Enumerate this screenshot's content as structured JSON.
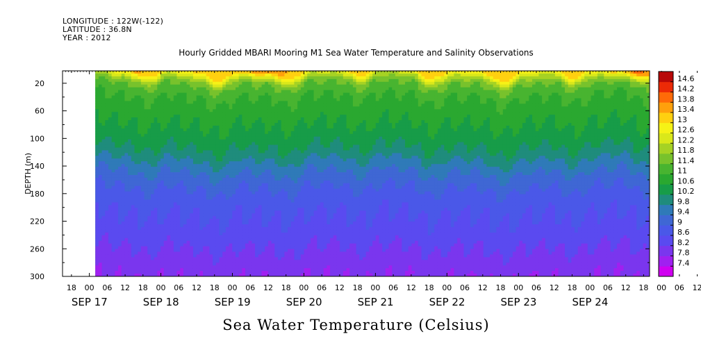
{
  "header": {
    "longitude": "LONGITUDE : 122W(-122)",
    "latitude": "LATITUDE : 36.8N",
    "year": "YEAR : 2012"
  },
  "chart_data": {
    "type": "heatmap",
    "title": "Hourly Gridded MBARI Mooring M1 Sea Water Temperature and Salinity Observations",
    "xlabel": "Sea Water Temperature (Celsius)",
    "ylabel": "DEPTH (m)",
    "x_hour_ticks": [
      "18",
      "00",
      "06",
      "12",
      "18",
      "00",
      "06",
      "12",
      "18",
      "00",
      "06",
      "12",
      "18",
      "00",
      "06",
      "12",
      "18",
      "00",
      "06",
      "12",
      "18",
      "00",
      "06",
      "12",
      "18",
      "00",
      "06",
      "12",
      "18",
      "00",
      "06",
      "12",
      "18",
      "00",
      "06",
      "12",
      "18"
    ],
    "x_day_labels": [
      "SEP 17",
      "SEP 18",
      "SEP 19",
      "SEP 20",
      "SEP 21",
      "SEP 22",
      "SEP 23",
      "SEP 24"
    ],
    "x_range_hours": [
      -9,
      188
    ],
    "data_start_hour": 2,
    "y_ticks": [
      20,
      60,
      100,
      140,
      180,
      220,
      260,
      300
    ],
    "ylim": [
      300,
      2
    ],
    "y_axis_reversed": true,
    "colorbar": {
      "labels": [
        "14.6",
        "14.2",
        "13.8",
        "13.4",
        "13",
        "12.6",
        "12.2",
        "11.8",
        "11.4",
        "11",
        "10.6",
        "10.2",
        "9.8",
        "9.4",
        "9",
        "8.6",
        "8.2",
        "7.8",
        "7.4"
      ],
      "levels": [
        7.4,
        7.8,
        8.2,
        8.6,
        9.0,
        9.4,
        9.8,
        10.2,
        10.6,
        11.0,
        11.4,
        11.8,
        12.2,
        12.6,
        13.0,
        13.4,
        13.8,
        14.2,
        14.6
      ],
      "colors": [
        "#d000f0",
        "#a020f0",
        "#7a36ee",
        "#5a4af0",
        "#4a58e8",
        "#3f67d4",
        "#2f7ab8",
        "#1f8c7c",
        "#179c48",
        "#2aa830",
        "#48b430",
        "#78c22c",
        "#a6d224",
        "#dae81a",
        "#f6f216",
        "#ffd010",
        "#ffa00c",
        "#ff6a08",
        "#ec2a06",
        "#b80808"
      ]
    },
    "depth_profile": {
      "depths_m": [
        2,
        10,
        20,
        40,
        60,
        80,
        100,
        120,
        140,
        160,
        180,
        200,
        220,
        240,
        260,
        280,
        300
      ],
      "temperature_c": [
        13.2,
        12.3,
        11.5,
        11.0,
        10.8,
        10.6,
        10.4,
        10.1,
        9.6,
        9.2,
        8.9,
        8.7,
        8.55,
        8.4,
        8.2,
        8.0,
        7.85
      ]
    },
    "surface_warm_events": [
      {
        "hour": 12,
        "surface_temp_c": 13.6
      },
      {
        "hour": 58,
        "surface_temp_c": 14.0
      },
      {
        "hour": 72,
        "surface_temp_c": 13.3
      },
      {
        "hour": 180,
        "surface_temp_c": 14.6
      }
    ]
  }
}
